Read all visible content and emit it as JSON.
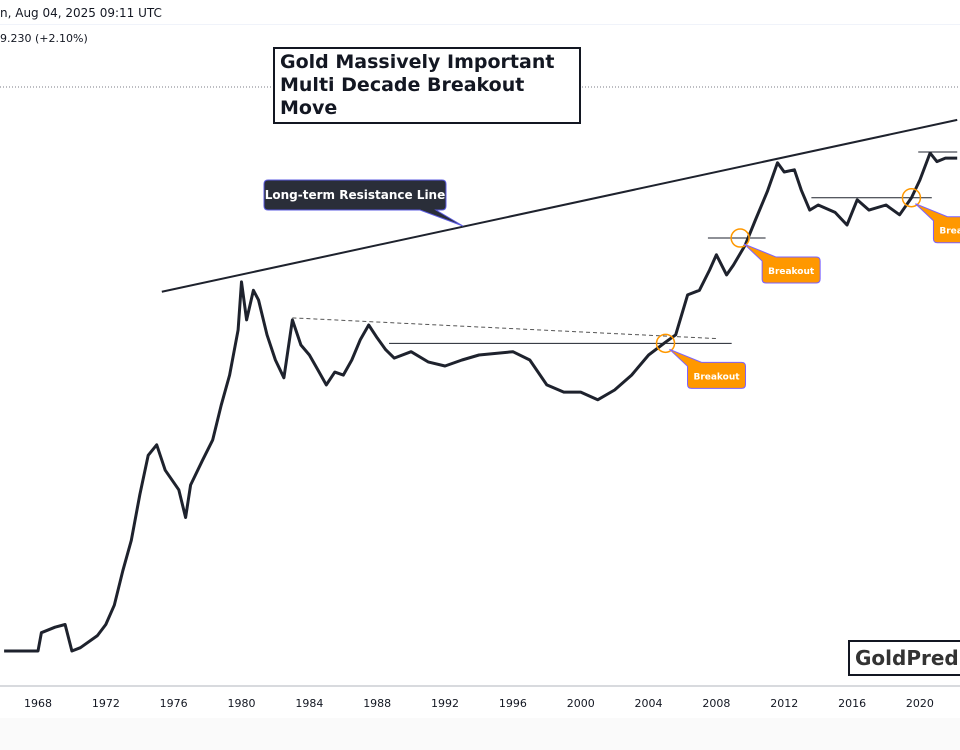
{
  "header": {
    "timestamp": "n, Aug 04, 2025 09:11 UTC",
    "price_change": "9.230 (+2.10%)"
  },
  "title": [
    "Gold Massively Important",
    "Multi Decade Breakout Move"
  ],
  "watermark": "GoldPredic",
  "colors": {
    "line": "#1e222d",
    "callout_dark": "#2a2e39",
    "callout_border": "#5b5be0",
    "breakout_orange": "#ff9800"
  },
  "chart_data": {
    "type": "line",
    "yscale": "log",
    "grid": false,
    "x_ticks": [
      "1968",
      "1972",
      "1976",
      "1980",
      "1984",
      "1988",
      "1992",
      "1996",
      "2000",
      "2004",
      "2008",
      "2012",
      "2016",
      "2020"
    ],
    "xlim": [
      1965.8,
      2022.2
    ],
    "points": [
      [
        1966.0,
        35
      ],
      [
        1968.0,
        35
      ],
      [
        1968.2,
        41
      ],
      [
        1969.0,
        43
      ],
      [
        1969.6,
        44
      ],
      [
        1970.0,
        35
      ],
      [
        1970.5,
        36
      ],
      [
        1971.5,
        40
      ],
      [
        1972.0,
        44
      ],
      [
        1972.5,
        52
      ],
      [
        1973.0,
        70
      ],
      [
        1973.5,
        91
      ],
      [
        1974.0,
        135
      ],
      [
        1974.5,
        190
      ],
      [
        1975.0,
        208
      ],
      [
        1975.5,
        167
      ],
      [
        1976.3,
        141
      ],
      [
        1976.7,
        111
      ],
      [
        1977.0,
        147
      ],
      [
        1977.7,
        182
      ],
      [
        1978.3,
        217
      ],
      [
        1978.8,
        293
      ],
      [
        1979.3,
        380
      ],
      [
        1979.8,
        561
      ],
      [
        1980.0,
        850
      ],
      [
        1980.3,
        612
      ],
      [
        1980.7,
        791
      ],
      [
        1981.0,
        728
      ],
      [
        1981.5,
        538
      ],
      [
        1982.0,
        433
      ],
      [
        1982.5,
        371
      ],
      [
        1983.0,
        612
      ],
      [
        1983.5,
        493
      ],
      [
        1984.0,
        452
      ],
      [
        1984.5,
        398
      ],
      [
        1985.0,
        349
      ],
      [
        1985.5,
        390
      ],
      [
        1986.0,
        380
      ],
      [
        1986.5,
        433
      ],
      [
        1987.0,
        515
      ],
      [
        1987.5,
        586
      ],
      [
        1988.0,
        524
      ],
      [
        1988.5,
        473
      ],
      [
        1989.0,
        440
      ],
      [
        1990.0,
        465
      ],
      [
        1991.0,
        426
      ],
      [
        1992.0,
        411
      ],
      [
        1993.0,
        433
      ],
      [
        1994.0,
        452
      ],
      [
        1996.0,
        465
      ],
      [
        1997.0,
        433
      ],
      [
        1998.0,
        349
      ],
      [
        1999.0,
        328
      ],
      [
        2000.0,
        328
      ],
      [
        2001.0,
        307
      ],
      [
        2002.0,
        334
      ],
      [
        2003.0,
        380
      ],
      [
        2004.0,
        452
      ],
      [
        2005.0,
        505
      ],
      [
        2005.6,
        538
      ],
      [
        2006.3,
        760
      ],
      [
        2007.0,
        791
      ],
      [
        2007.6,
        942
      ],
      [
        2008.0,
        1075
      ],
      [
        2008.6,
        903
      ],
      [
        2009.0,
        983
      ],
      [
        2009.7,
        1169
      ],
      [
        2010.3,
        1452
      ],
      [
        2011.0,
        1855
      ],
      [
        2011.6,
        2380
      ],
      [
        2012.0,
        2198
      ],
      [
        2012.6,
        2240
      ],
      [
        2013.0,
        1883
      ],
      [
        2013.5,
        1582
      ],
      [
        2014.0,
        1652
      ],
      [
        2015.0,
        1550
      ],
      [
        2015.7,
        1390
      ],
      [
        2016.3,
        1729
      ],
      [
        2017.0,
        1582
      ],
      [
        2018.0,
        1652
      ],
      [
        2018.8,
        1519
      ],
      [
        2019.5,
        1757
      ],
      [
        2020.0,
        2051
      ],
      [
        2020.6,
        2590
      ],
      [
        2021.0,
        2404
      ],
      [
        2021.5,
        2478
      ],
      [
        2022.2,
        2478
      ]
    ],
    "annotations": {
      "resistance_line": {
        "label": "Long-term Resistance Line",
        "from": [
          1975.3,
          781
        ],
        "to": [
          2022.2,
          3448
        ]
      },
      "dashed_trendline": {
        "from": [
          1983.0,
          623
        ],
        "to": [
          2008.0,
          521
        ]
      },
      "levels": [
        {
          "from": 1988.7,
          "to": 2008.9,
          "value": 500
        },
        {
          "from": 2007.5,
          "to": 2010.9,
          "value": 1242
        },
        {
          "from": 2013.6,
          "to": 2020.7,
          "value": 1760
        },
        {
          "from": 2019.9,
          "to": 2022.2,
          "value": 2612
        }
      ],
      "breakouts": [
        {
          "label": "Breakout",
          "year": 2005.0,
          "value": 500
        },
        {
          "label": "Breakout",
          "year": 2009.4,
          "value": 1242
        },
        {
          "label": "Breakout",
          "year": 2019.5,
          "value": 1760
        }
      ]
    }
  }
}
